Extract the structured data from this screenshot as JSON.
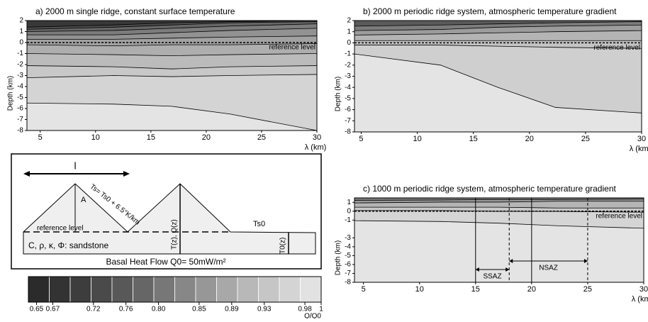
{
  "chart_data": [
    {
      "type": "contour",
      "title": "a) 2000 m single ridge, constant surface temperature",
      "xlabel": "λ (km)",
      "ylabel": "Depth (km)",
      "annotation": "reference level",
      "xlim": [
        3.8,
        30
      ],
      "xticks": [
        5,
        10,
        15,
        20,
        25,
        30
      ],
      "ylim": [
        -8,
        2
      ],
      "yticks": [
        2,
        1,
        0,
        -1,
        -2,
        -3,
        -4,
        -5,
        -6,
        -7,
        -8
      ],
      "reference_y": 0
    },
    {
      "type": "contour",
      "title": "b) 2000 m periodic ridge system, atmospheric temperature gradient",
      "xlabel": "λ (km)",
      "ylabel": "Depth (km)",
      "annotation": "reference level",
      "xlim": [
        4.4,
        30
      ],
      "xticks": [
        5,
        10,
        15,
        20,
        25,
        30
      ],
      "ylim": [
        -8,
        2
      ],
      "yticks": [
        2,
        1,
        0,
        -1,
        -2,
        -3,
        -4,
        -5,
        -6,
        -7,
        -8
      ],
      "reference_y": 0
    },
    {
      "type": "contour",
      "title": "c) 1000 m periodic ridge system, atmospheric temperature gradient",
      "xlabel": "λ (km)",
      "ylabel": "Depth (km)",
      "annotation": "reference level",
      "xlim": [
        4.2,
        30
      ],
      "xticks": [
        5,
        10,
        15,
        20,
        25,
        30
      ],
      "ylim": [
        -8,
        1.5
      ],
      "yticks": [
        1,
        0,
        -1,
        -3,
        -4,
        -5,
        -6,
        -7,
        -8
      ],
      "reference_y": 0,
      "vlines": [
        {
          "x": 15,
          "style": "solid"
        },
        {
          "x": 18,
          "style": "dashed"
        },
        {
          "x": 20,
          "style": "solid"
        },
        {
          "x": 25,
          "style": "dashed"
        }
      ],
      "zones": [
        {
          "name": "SSAZ",
          "from": 15,
          "to": 18
        },
        {
          "name": "NSAZ",
          "from": 18,
          "to": 25
        }
      ]
    },
    {
      "type": "colorbar",
      "label": "Q/Q0",
      "xlim": [
        0.64,
        1.0
      ],
      "colors": [
        "#2b2b2b",
        "#333333",
        "#3d3d3d",
        "#4a4a4a",
        "#585858",
        "#666666",
        "#777777",
        "#878787",
        "#979797",
        "#a8a8a8",
        "#b8b8b8",
        "#c6c6c6",
        "#d4d4d4",
        "#e2e2e2"
      ],
      "xticks": [
        0.65,
        0.67,
        0.72,
        0.76,
        {
          "value": 0.8,
          "label": "0.80"
        },
        0.85,
        0.89,
        0.93,
        0.98,
        1
      ]
    }
  ],
  "schematic": {
    "length": "l",
    "surface_temperature": "Ts= Ts0 + 6.5°K/km",
    "amplitude": "A",
    "reference": "reference level",
    "ts0": "Ts0",
    "profile": "T(z), Q(z)",
    "profile0": "T0(z)",
    "material": "C, ρ, κ, Φ: sandstone",
    "basal": "Basal Heat Flow Q0= 50mW/m²"
  }
}
